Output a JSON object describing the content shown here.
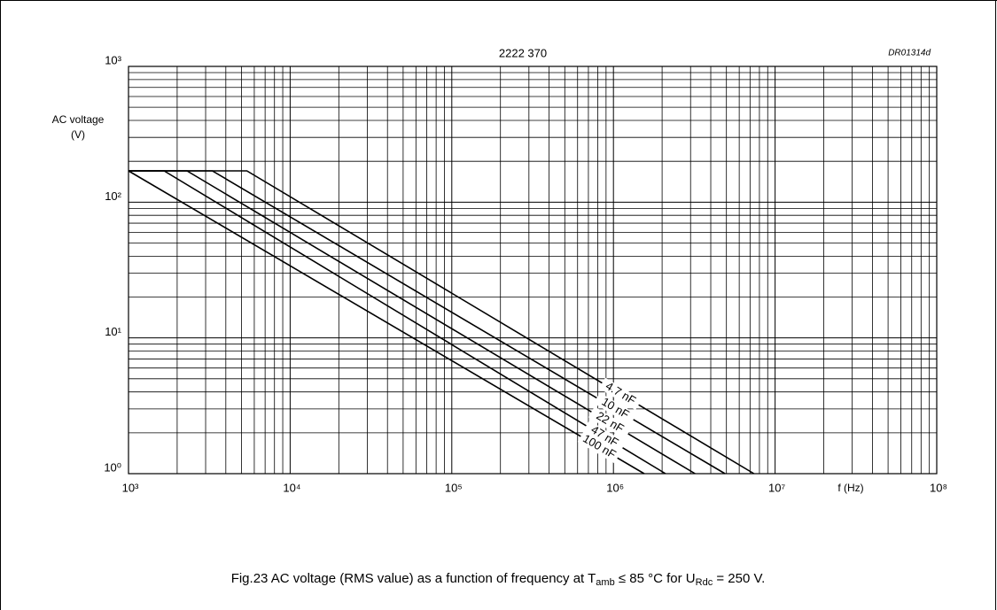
{
  "chart_data": {
    "type": "line",
    "title": "2222 370",
    "code": "DR01314d",
    "ylabel": [
      "AC voltage",
      "(V)"
    ],
    "xlabel": "f (Hz)",
    "caption": [
      "Fig.23  AC voltage (RMS value) as a function of frequency at T",
      "amb",
      " ≤ 85 °C for U",
      "Rdc",
      " = 250 V."
    ],
    "xscale": "log",
    "yscale": "log",
    "grid": "minor",
    "xlim": [
      1000,
      100000000
    ],
    "ylim": [
      1,
      1000
    ],
    "xticks": [
      {
        "value": 1000,
        "label": "10³"
      },
      {
        "value": 10000,
        "label": "10⁴"
      },
      {
        "value": 100000,
        "label": "10⁵"
      },
      {
        "value": 1000000,
        "label": "10⁶"
      },
      {
        "value": 10000000,
        "label": "10⁷"
      },
      {
        "value": 100000000,
        "label": "10⁸"
      }
    ],
    "yticks": [
      {
        "value": 1,
        "label": "10⁰"
      },
      {
        "value": 10,
        "label": "10¹"
      },
      {
        "value": 100,
        "label": "10²"
      },
      {
        "value": 1000,
        "label": "10³"
      }
    ],
    "series": [
      {
        "name": "4.7 nF",
        "color": "#000000",
        "x": [
          1000,
          5400,
          7400000
        ],
        "values": [
          170,
          170,
          1
        ]
      },
      {
        "name": "10 nF",
        "color": "#000000",
        "x": [
          1000,
          3300,
          4900000
        ],
        "values": [
          170,
          170,
          1
        ]
      },
      {
        "name": "22 nF",
        "color": "#000000",
        "x": [
          1000,
          2300,
          3200000
        ],
        "values": [
          170,
          170,
          1
        ]
      },
      {
        "name": "47 nF",
        "color": "#000000",
        "x": [
          1000,
          1660,
          2100000
        ],
        "values": [
          170,
          170,
          1
        ]
      },
      {
        "name": "100 nF",
        "color": "#000000",
        "x": [
          1000,
          1550000
        ],
        "values": [
          170,
          1
        ]
      }
    ]
  }
}
